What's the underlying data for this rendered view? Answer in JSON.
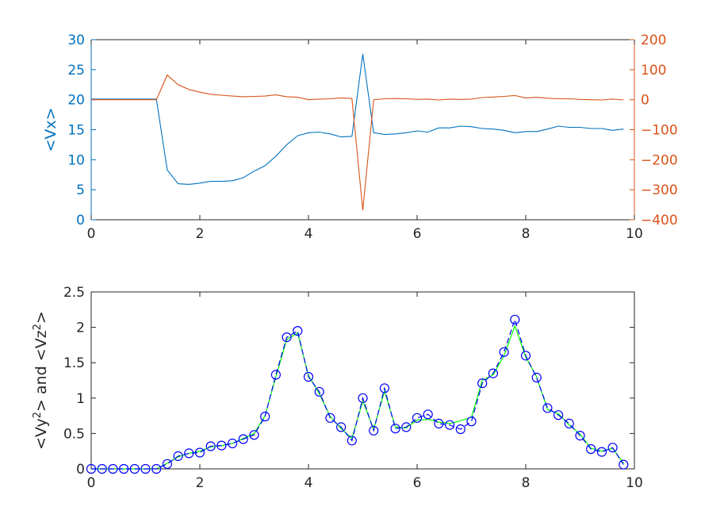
{
  "chart_data": [
    {
      "type": "line",
      "xlim": [
        0,
        10
      ],
      "x_ticks": [
        "0",
        "2",
        "4",
        "6",
        "8",
        "10"
      ],
      "ylabel_left": "<Vx>",
      "ylim_left": [
        0,
        30
      ],
      "y_ticks_left": [
        "0",
        "5",
        "10",
        "15",
        "20",
        "25",
        "30"
      ],
      "ylim_right": [
        -400,
        200
      ],
      "y_ticks_right": [
        "-400",
        "-300",
        "-200",
        "-100",
        "0",
        "100",
        "200"
      ],
      "grid": false,
      "colors": {
        "left": "#0072BD",
        "right": "#D95319"
      },
      "series": [
        {
          "axis": "left",
          "x": [
            0,
            0.2,
            0.4,
            0.6,
            0.8,
            1.0,
            1.2,
            1.4,
            1.6,
            1.8,
            2.0,
            2.2,
            2.4,
            2.6,
            2.8,
            3.0,
            3.2,
            3.4,
            3.6,
            3.8,
            4.0,
            4.2,
            4.4,
            4.6,
            4.8,
            5.0,
            5.2,
            5.4,
            5.6,
            5.8,
            6.0,
            6.2,
            6.4,
            6.6,
            6.8,
            7.0,
            7.2,
            7.4,
            7.6,
            7.8,
            8.0,
            8.2,
            8.4,
            8.6,
            8.8,
            9.0,
            9.2,
            9.4,
            9.6,
            9.8
          ],
          "values": [
            20.1,
            20.1,
            20.1,
            20.1,
            20.1,
            20.1,
            20.1,
            8.3,
            6.0,
            5.9,
            6.1,
            6.4,
            6.4,
            6.5,
            7.0,
            8.1,
            9.0,
            10.6,
            12.5,
            14.0,
            14.5,
            14.6,
            14.3,
            13.8,
            13.9,
            27.6,
            14.5,
            14.2,
            14.3,
            14.5,
            14.8,
            14.6,
            15.3,
            15.3,
            15.6,
            15.5,
            15.2,
            15.1,
            14.9,
            14.5,
            14.7,
            14.7,
            15.1,
            15.6,
            15.4,
            15.4,
            15.2,
            15.2,
            14.9,
            15.1
          ]
        },
        {
          "axis": "right",
          "x": [
            0,
            0.2,
            0.4,
            0.6,
            0.8,
            1.0,
            1.2,
            1.4,
            1.6,
            1.8,
            2.0,
            2.2,
            2.4,
            2.6,
            2.8,
            3.0,
            3.2,
            3.4,
            3.6,
            3.8,
            4.0,
            4.2,
            4.4,
            4.6,
            4.8,
            5.0,
            5.2,
            5.4,
            5.6,
            5.8,
            6.0,
            6.2,
            6.4,
            6.6,
            6.8,
            7.0,
            7.2,
            7.4,
            7.6,
            7.8,
            8.0,
            8.2,
            8.4,
            8.6,
            8.8,
            9.0,
            9.2,
            9.4,
            9.6,
            9.8
          ],
          "values": [
            0,
            0,
            0,
            0,
            0,
            0,
            0,
            82,
            50,
            34,
            25,
            18,
            15,
            12,
            10,
            11,
            12,
            16,
            10,
            8,
            0,
            2,
            3,
            6,
            4,
            -368,
            0,
            3,
            4,
            3,
            1,
            2,
            -1,
            2,
            1,
            2,
            7,
            9,
            11,
            14,
            6,
            8,
            5,
            3,
            3,
            1,
            0,
            -1,
            2,
            -1
          ]
        }
      ]
    },
    {
      "type": "line",
      "xlim": [
        0,
        10
      ],
      "x_ticks": [
        "0",
        "2",
        "4",
        "6",
        "8",
        "10"
      ],
      "ylabel_parts": [
        "<Vy",
        "2",
        "> and <Vz",
        "2",
        ">"
      ],
      "ylim": [
        0,
        2.5
      ],
      "y_ticks": [
        "0",
        "0.5",
        "1",
        "1.5",
        "2",
        "2.5"
      ],
      "grid": false,
      "colors": {
        "vy": "#0000FF",
        "vz": "#00FF00"
      },
      "series": [
        {
          "style": "dashed-circles",
          "x": [
            0,
            0.2,
            0.4,
            0.6,
            0.8,
            1.0,
            1.2,
            1.4,
            1.6,
            1.8,
            2.0,
            2.2,
            2.4,
            2.6,
            2.8,
            3.0,
            3.2,
            3.4,
            3.6,
            3.8,
            4.0,
            4.2,
            4.4,
            4.6,
            4.8,
            5.0,
            5.2,
            5.4,
            5.6,
            5.8,
            6.0,
            6.2,
            6.4,
            6.6,
            6.8,
            7.0,
            7.2,
            7.4,
            7.6,
            7.8,
            8.0,
            8.2,
            8.4,
            8.6,
            8.8,
            9.0,
            9.2,
            9.4,
            9.6,
            9.8
          ],
          "values": [
            0,
            0,
            0,
            0,
            0,
            0,
            0,
            0.07,
            0.18,
            0.22,
            0.23,
            0.32,
            0.33,
            0.36,
            0.42,
            0.48,
            0.74,
            1.33,
            1.86,
            1.95,
            1.3,
            1.09,
            0.72,
            0.59,
            0.4,
            1.0,
            0.54,
            1.14,
            0.57,
            0.59,
            0.72,
            0.77,
            0.64,
            0.62,
            0.56,
            0.67,
            1.21,
            1.35,
            1.65,
            2.11,
            1.6,
            1.29,
            0.86,
            0.76,
            0.64,
            0.47,
            0.28,
            0.24,
            0.3,
            0.06
          ]
        },
        {
          "style": "solid",
          "x": [
            0,
            0.2,
            0.4,
            0.6,
            0.8,
            1.0,
            1.2,
            1.4,
            1.6,
            1.8,
            2.0,
            2.2,
            2.4,
            2.6,
            2.8,
            3.0,
            3.2,
            3.4,
            3.6,
            3.8,
            4.0,
            4.2,
            4.4,
            4.6,
            4.8,
            5.0,
            5.2,
            5.4,
            5.6,
            5.8,
            6.0,
            6.2,
            6.4,
            6.6,
            6.8,
            7.0,
            7.2,
            7.4,
            7.6,
            7.8,
            8.0,
            8.2,
            8.4,
            8.6,
            8.8,
            9.0,
            9.2,
            9.4,
            9.6,
            9.8
          ],
          "values": [
            0,
            0,
            0,
            0,
            0,
            0,
            0,
            0.08,
            0.17,
            0.22,
            0.25,
            0.31,
            0.33,
            0.36,
            0.43,
            0.5,
            0.75,
            1.3,
            1.83,
            1.92,
            1.32,
            1.06,
            0.74,
            0.57,
            0.43,
            0.96,
            0.56,
            1.1,
            0.59,
            0.58,
            0.69,
            0.7,
            0.66,
            0.64,
            0.68,
            0.73,
            1.25,
            1.33,
            1.6,
            2.02,
            1.58,
            1.3,
            0.84,
            0.78,
            0.62,
            0.49,
            0.29,
            0.25,
            0.29,
            0.08
          ]
        }
      ]
    }
  ]
}
